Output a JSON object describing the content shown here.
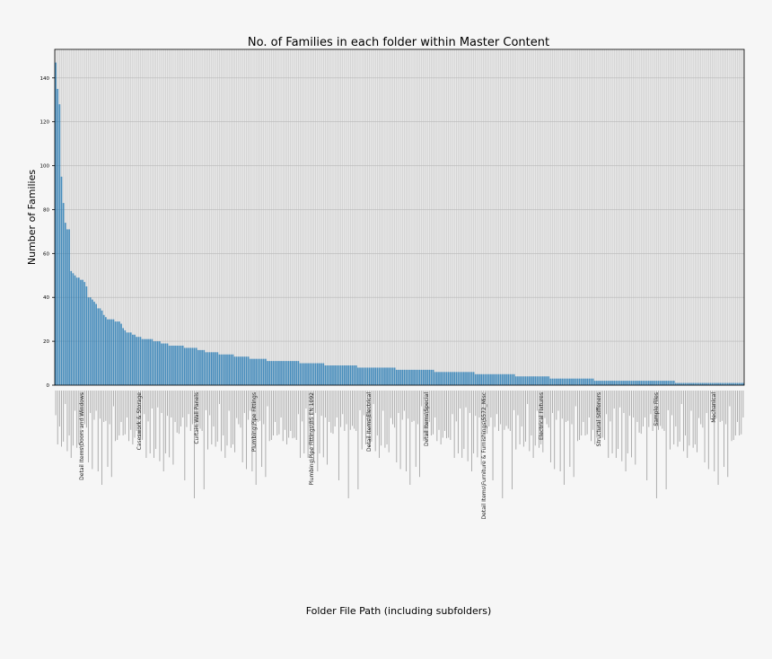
{
  "chart_data": {
    "type": "bar",
    "title": "No. of Families in each folder within Master Content",
    "xlabel": "Folder File Path (including subfolders)",
    "ylabel": "Number of Families",
    "ylim": [
      0,
      153
    ],
    "yticks": [
      0,
      20,
      40,
      60,
      80,
      100,
      120,
      140
    ],
    "grid": true,
    "bar_color": "#1f77b4",
    "plot_bg": "#e8e8e8",
    "grid_color": "#b8b8b8",
    "category_labels_legible": false,
    "readable_category_labels": [
      "Detail Items\\Doors and Windows",
      "Caseswork & Storage",
      "Curtain Wall Panels",
      "Plumbing\\Pipe Fittings",
      "Plumbing\\Pipe Fittings\\BS EN 1092",
      "Detail Items\\Electrical",
      "Detail Items\\Special",
      "Detail Items\\Furniture & Furnishings\\S572_Misc",
      "Electrical Fixtures",
      "Structural Stiffeners",
      "Sample Files",
      "Mechanical"
    ],
    "values": [
      147,
      135,
      128,
      95,
      83,
      74,
      71,
      71,
      52,
      51,
      50,
      49,
      49,
      48,
      48,
      47,
      45,
      40,
      40,
      39,
      38,
      37,
      35,
      35,
      34,
      32,
      31,
      30,
      30,
      30,
      30,
      29,
      29,
      29,
      28,
      26,
      25,
      24,
      24,
      24,
      23,
      23,
      22,
      22,
      22,
      21,
      21,
      21,
      21,
      21,
      21,
      20,
      20,
      20,
      20,
      19,
      19,
      19,
      19,
      18,
      18,
      18,
      18,
      18,
      18,
      18,
      18,
      17,
      17,
      17,
      17,
      17,
      17,
      17,
      16,
      16,
      16,
      16,
      15,
      15,
      15,
      15,
      15,
      15,
      15,
      14,
      14,
      14,
      14,
      14,
      14,
      14,
      14,
      13,
      13,
      13,
      13,
      13,
      13,
      13,
      13,
      12,
      12,
      12,
      12,
      12,
      12,
      12,
      12,
      12,
      11,
      11,
      11,
      11,
      11,
      11,
      11,
      11,
      11,
      11,
      11,
      11,
      11,
      11,
      11,
      11,
      11,
      10,
      10,
      10,
      10,
      10,
      10,
      10,
      10,
      10,
      10,
      10,
      10,
      10,
      9,
      9,
      9,
      9,
      9,
      9,
      9,
      9,
      9,
      9,
      9,
      9,
      9,
      9,
      9,
      9,
      9,
      8,
      8,
      8,
      8,
      8,
      8,
      8,
      8,
      8,
      8,
      8,
      8,
      8,
      8,
      8,
      8,
      8,
      8,
      8,
      8,
      7,
      7,
      7,
      7,
      7,
      7,
      7,
      7,
      7,
      7,
      7,
      7,
      7,
      7,
      7,
      7,
      7,
      7,
      7,
      7,
      6,
      6,
      6,
      6,
      6,
      6,
      6,
      6,
      6,
      6,
      6,
      6,
      6,
      6,
      6,
      6,
      6,
      6,
      6,
      6,
      6,
      5,
      5,
      5,
      5,
      5,
      5,
      5,
      5,
      5,
      5,
      5,
      5,
      5,
      5,
      5,
      5,
      5,
      5,
      5,
      5,
      5,
      4,
      4,
      4,
      4,
      4,
      4,
      4,
      4,
      4,
      4,
      4,
      4,
      4,
      4,
      4,
      4,
      4,
      4,
      3,
      3,
      3,
      3,
      3,
      3,
      3,
      3,
      3,
      3,
      3,
      3,
      3,
      3,
      3,
      3,
      3,
      3,
      3,
      3,
      3,
      3,
      3,
      2,
      2,
      2,
      2,
      2,
      2,
      2,
      2,
      2,
      2,
      2,
      2,
      2,
      2,
      2,
      2,
      2,
      2,
      2,
      2,
      2,
      2,
      2,
      2,
      2,
      2,
      2,
      2,
      2,
      2,
      2,
      2,
      2,
      2,
      2,
      2,
      2,
      2,
      2,
      2,
      2,
      2,
      1,
      1,
      1,
      1,
      1,
      1,
      1,
      1,
      1,
      1,
      1,
      1,
      1,
      1,
      1,
      1,
      1,
      1,
      1,
      1,
      1,
      1,
      1,
      1,
      1,
      1,
      1,
      1,
      1,
      1,
      1,
      1,
      1,
      1,
      1,
      1
    ]
  }
}
